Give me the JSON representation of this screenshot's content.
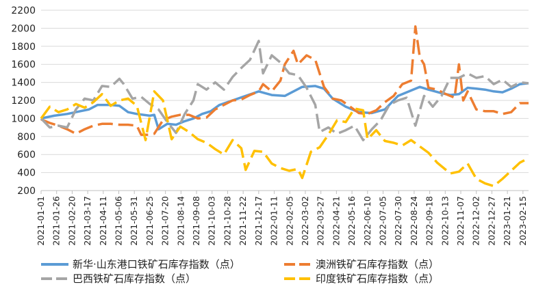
{
  "chart_data": {
    "type": "line",
    "title": "",
    "xlabel": "",
    "ylabel": "",
    "ylim": [
      200,
      2200
    ],
    "yticks": [
      200,
      400,
      600,
      800,
      1000,
      1200,
      1400,
      1600,
      1800,
      2000,
      2200
    ],
    "grid": "horizontal",
    "legend_position": "bottom",
    "x_range": [
      "2021-01-01",
      "2023-02-24"
    ],
    "xtick_labels": [
      "2021-01-01",
      "2021-01-26",
      "2021-02-20",
      "2021-03-17",
      "2021-04-11",
      "2021-05-06",
      "2021-05-31",
      "2021-06-25",
      "2021-07-20",
      "2021-08-14",
      "2021-09-08",
      "2021-10-03",
      "2021-10-28",
      "2021-11-22",
      "2021-12-17",
      "2022-01-11",
      "2022-02-05",
      "2022-03-02",
      "2022-03-27",
      "2022-04-21",
      "2022-05-16",
      "2022-06-10",
      "2022-07-05",
      "2022-07-30",
      "2022-08-24",
      "2022-09-18",
      "2022-10-13",
      "2022-11-07",
      "2022-12-02",
      "2022-12-27",
      "2023-01-21",
      "2023-02-15"
    ],
    "series": [
      {
        "name": "新华·山东港口铁矿石库存指数（点）",
        "color": "#5B9BD5",
        "dash": "solid",
        "points": [
          [
            "2021-01-01",
            1000
          ],
          [
            "2021-01-22",
            1030
          ],
          [
            "2021-02-12",
            1050
          ],
          [
            "2021-03-05",
            1080
          ],
          [
            "2021-03-19",
            1100
          ],
          [
            "2021-04-02",
            1150
          ],
          [
            "2021-04-23",
            1150
          ],
          [
            "2021-05-07",
            1140
          ],
          [
            "2021-05-21",
            1070
          ],
          [
            "2021-06-04",
            1050
          ],
          [
            "2021-06-25",
            1030
          ],
          [
            "2021-07-02",
            1040
          ],
          [
            "2021-07-09",
            880
          ],
          [
            "2021-07-23",
            940
          ],
          [
            "2021-08-06",
            930
          ],
          [
            "2021-08-20",
            970
          ],
          [
            "2021-09-03",
            1000
          ],
          [
            "2021-09-17",
            1050
          ],
          [
            "2021-10-01",
            1080
          ],
          [
            "2021-10-15",
            1150
          ],
          [
            "2021-11-05",
            1200
          ],
          [
            "2021-11-26",
            1250
          ],
          [
            "2021-12-17",
            1300
          ],
          [
            "2022-01-07",
            1260
          ],
          [
            "2022-01-28",
            1250
          ],
          [
            "2022-02-11",
            1300
          ],
          [
            "2022-02-25",
            1350
          ],
          [
            "2022-03-18",
            1360
          ],
          [
            "2022-04-01",
            1330
          ],
          [
            "2022-04-15",
            1220
          ],
          [
            "2022-05-06",
            1130
          ],
          [
            "2022-05-27",
            1070
          ],
          [
            "2022-06-17",
            1060
          ],
          [
            "2022-07-08",
            1100
          ],
          [
            "2022-07-29",
            1250
          ],
          [
            "2022-08-19",
            1310
          ],
          [
            "2022-09-02",
            1350
          ],
          [
            "2022-09-16",
            1320
          ],
          [
            "2022-10-07",
            1280
          ],
          [
            "2022-10-21",
            1260
          ],
          [
            "2022-11-04",
            1270
          ],
          [
            "2022-11-18",
            1340
          ],
          [
            "2022-12-02",
            1330
          ],
          [
            "2022-12-16",
            1320
          ],
          [
            "2022-12-30",
            1300
          ],
          [
            "2023-01-13",
            1290
          ],
          [
            "2023-01-27",
            1330
          ],
          [
            "2023-02-10",
            1380
          ],
          [
            "2023-02-24",
            1390
          ]
        ]
      },
      {
        "name": "澳洲铁矿石库存指数（点）",
        "color": "#ED7D31",
        "dash": "dashed",
        "points": [
          [
            "2021-01-01",
            990
          ],
          [
            "2021-01-15",
            950
          ],
          [
            "2021-01-29",
            920
          ],
          [
            "2021-02-12",
            880
          ],
          [
            "2021-02-26",
            830
          ],
          [
            "2021-03-12",
            880
          ],
          [
            "2021-03-26",
            920
          ],
          [
            "2021-04-09",
            940
          ],
          [
            "2021-04-23",
            940
          ],
          [
            "2021-05-07",
            930
          ],
          [
            "2021-05-21",
            930
          ],
          [
            "2021-06-04",
            920
          ],
          [
            "2021-06-11",
            820
          ],
          [
            "2021-06-25",
            820
          ],
          [
            "2021-07-02",
            830
          ],
          [
            "2021-07-16",
            980
          ],
          [
            "2021-07-30",
            1020
          ],
          [
            "2021-08-13",
            1040
          ],
          [
            "2021-08-27",
            1040
          ],
          [
            "2021-09-10",
            1000
          ],
          [
            "2021-09-24",
            1010
          ],
          [
            "2021-10-08",
            1100
          ],
          [
            "2021-10-22",
            1150
          ],
          [
            "2021-11-05",
            1200
          ],
          [
            "2021-11-19",
            1210
          ],
          [
            "2021-12-03",
            1260
          ],
          [
            "2021-12-17",
            1300
          ],
          [
            "2021-12-24",
            1380
          ],
          [
            "2022-01-07",
            1300
          ],
          [
            "2022-01-21",
            1420
          ],
          [
            "2022-01-28",
            1600
          ],
          [
            "2022-02-11",
            1750
          ],
          [
            "2022-02-18",
            1600
          ],
          [
            "2022-03-04",
            1700
          ],
          [
            "2022-03-18",
            1650
          ],
          [
            "2022-04-01",
            1350
          ],
          [
            "2022-04-15",
            1220
          ],
          [
            "2022-04-29",
            1200
          ],
          [
            "2022-05-13",
            1130
          ],
          [
            "2022-05-27",
            1060
          ],
          [
            "2022-06-10",
            1050
          ],
          [
            "2022-06-24",
            1090
          ],
          [
            "2022-07-08",
            1180
          ],
          [
            "2022-07-22",
            1250
          ],
          [
            "2022-08-05",
            1380
          ],
          [
            "2022-08-19",
            1420
          ],
          [
            "2022-08-26",
            2020
          ],
          [
            "2022-09-02",
            1680
          ],
          [
            "2022-09-09",
            1600
          ],
          [
            "2022-09-16",
            1340
          ],
          [
            "2022-09-30",
            1320
          ],
          [
            "2022-10-14",
            1270
          ],
          [
            "2022-10-28",
            1230
          ],
          [
            "2022-11-04",
            1600
          ],
          [
            "2022-11-11",
            1200
          ],
          [
            "2022-11-18",
            1300
          ],
          [
            "2022-12-02",
            1100
          ],
          [
            "2022-12-16",
            1080
          ],
          [
            "2022-12-30",
            1080
          ],
          [
            "2023-01-13",
            1050
          ],
          [
            "2023-01-27",
            1070
          ],
          [
            "2023-02-10",
            1170
          ],
          [
            "2023-02-24",
            1170
          ]
        ]
      },
      {
        "name": "巴西铁矿石库存指数（点）",
        "color": "#A5A5A5",
        "dash": "dashed",
        "points": [
          [
            "2021-01-01",
            1000
          ],
          [
            "2021-01-15",
            900
          ],
          [
            "2021-01-29",
            920
          ],
          [
            "2021-02-12",
            900
          ],
          [
            "2021-02-26",
            1100
          ],
          [
            "2021-03-12",
            1220
          ],
          [
            "2021-03-26",
            1200
          ],
          [
            "2021-04-09",
            1360
          ],
          [
            "2021-04-23",
            1350
          ],
          [
            "2021-05-07",
            1440
          ],
          [
            "2021-05-14",
            1380
          ],
          [
            "2021-05-28",
            1220
          ],
          [
            "2021-06-11",
            1240
          ],
          [
            "2021-06-25",
            1160
          ],
          [
            "2021-07-09",
            1100
          ],
          [
            "2021-07-23",
            960
          ],
          [
            "2021-08-06",
            840
          ],
          [
            "2021-08-20",
            1050
          ],
          [
            "2021-09-03",
            1200
          ],
          [
            "2021-09-10",
            1380
          ],
          [
            "2021-09-24",
            1320
          ],
          [
            "2021-10-08",
            1400
          ],
          [
            "2021-10-22",
            1320
          ],
          [
            "2021-11-05",
            1460
          ],
          [
            "2021-11-19",
            1560
          ],
          [
            "2021-12-03",
            1650
          ],
          [
            "2021-12-17",
            1860
          ],
          [
            "2021-12-24",
            1500
          ],
          [
            "2022-01-07",
            1700
          ],
          [
            "2022-01-21",
            1620
          ],
          [
            "2022-02-04",
            1500
          ],
          [
            "2022-02-18",
            1480
          ],
          [
            "2022-03-04",
            1340
          ],
          [
            "2022-03-18",
            1150
          ],
          [
            "2022-03-25",
            850
          ],
          [
            "2022-04-08",
            900
          ],
          [
            "2022-04-22",
            830
          ],
          [
            "2022-05-06",
            870
          ],
          [
            "2022-05-20",
            920
          ],
          [
            "2022-06-03",
            760
          ],
          [
            "2022-06-17",
            880
          ],
          [
            "2022-07-01",
            980
          ],
          [
            "2022-07-15",
            1150
          ],
          [
            "2022-07-29",
            1200
          ],
          [
            "2022-08-12",
            1230
          ],
          [
            "2022-08-26",
            920
          ],
          [
            "2022-09-09",
            1250
          ],
          [
            "2022-09-23",
            1130
          ],
          [
            "2022-10-07",
            1250
          ],
          [
            "2022-10-21",
            1450
          ],
          [
            "2022-11-04",
            1450
          ],
          [
            "2022-11-18",
            1500
          ],
          [
            "2022-12-02",
            1450
          ],
          [
            "2022-12-16",
            1470
          ],
          [
            "2022-12-30",
            1380
          ],
          [
            "2023-01-13",
            1430
          ],
          [
            "2023-01-27",
            1350
          ],
          [
            "2023-02-10",
            1400
          ],
          [
            "2023-02-24",
            1390
          ]
        ]
      },
      {
        "name": "印度铁矿石库存指数（点）",
        "color": "#FFC000",
        "dash": "dashed",
        "points": [
          [
            "2021-01-01",
            1000
          ],
          [
            "2021-01-15",
            1130
          ],
          [
            "2021-01-29",
            1070
          ],
          [
            "2021-02-12",
            1100
          ],
          [
            "2021-02-26",
            1160
          ],
          [
            "2021-03-12",
            1120
          ],
          [
            "2021-03-26",
            1180
          ],
          [
            "2021-04-09",
            1270
          ],
          [
            "2021-04-23",
            1140
          ],
          [
            "2021-05-07",
            1200
          ],
          [
            "2021-05-21",
            1220
          ],
          [
            "2021-06-04",
            1140
          ],
          [
            "2021-06-18",
            760
          ],
          [
            "2021-07-02",
            1300
          ],
          [
            "2021-07-16",
            1200
          ],
          [
            "2021-07-30",
            770
          ],
          [
            "2021-08-13",
            910
          ],
          [
            "2021-08-27",
            850
          ],
          [
            "2021-09-10",
            770
          ],
          [
            "2021-09-24",
            730
          ],
          [
            "2021-10-08",
            660
          ],
          [
            "2021-10-22",
            600
          ],
          [
            "2021-11-05",
            760
          ],
          [
            "2021-11-19",
            670
          ],
          [
            "2021-11-26",
            430
          ],
          [
            "2021-12-10",
            640
          ],
          [
            "2021-12-24",
            630
          ],
          [
            "2022-01-07",
            500
          ],
          [
            "2022-01-21",
            450
          ],
          [
            "2022-02-04",
            420
          ],
          [
            "2022-02-18",
            440
          ],
          [
            "2022-02-25",
            340
          ],
          [
            "2022-03-11",
            630
          ],
          [
            "2022-03-25",
            680
          ],
          [
            "2022-04-08",
            820
          ],
          [
            "2022-04-22",
            980
          ],
          [
            "2022-05-06",
            960
          ],
          [
            "2022-05-20",
            1110
          ],
          [
            "2022-06-03",
            1090
          ],
          [
            "2022-06-10",
            770
          ],
          [
            "2022-06-24",
            870
          ],
          [
            "2022-07-08",
            750
          ],
          [
            "2022-07-22",
            730
          ],
          [
            "2022-08-05",
            700
          ],
          [
            "2022-08-19",
            760
          ],
          [
            "2022-09-02",
            690
          ],
          [
            "2022-09-16",
            620
          ],
          [
            "2022-09-30",
            510
          ],
          [
            "2022-10-21",
            390
          ],
          [
            "2022-11-04",
            410
          ],
          [
            "2022-11-18",
            500
          ],
          [
            "2022-12-02",
            330
          ],
          [
            "2022-12-16",
            280
          ],
          [
            "2022-12-30",
            250
          ],
          [
            "2023-01-13",
            330
          ],
          [
            "2023-01-27",
            420
          ],
          [
            "2023-02-10",
            510
          ],
          [
            "2023-02-24",
            560
          ]
        ]
      }
    ]
  }
}
